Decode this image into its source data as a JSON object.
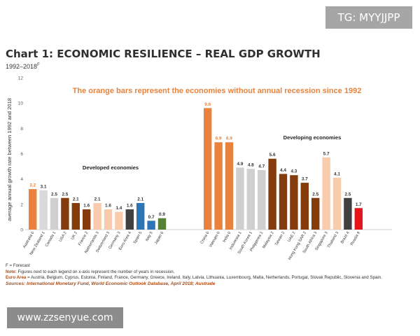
{
  "watermark_tag": "TG: MYYJJPP",
  "watermark_site": "www.zzsenyue.com",
  "title": "Chart 1: ECONOMIC RESILIENCE – REAL GDP GROWTH",
  "subtitle": "1992–2018",
  "subtitle_sup": "F",
  "notes": {
    "forecast": "F = Forecast",
    "note_label": "Note:",
    "note_text": " Figures next to each legend on x-axis represent the number of years in recession.",
    "euro_label": "Euro Area",
    "euro_text": " = Austria, Belgium, Cyprus, Estonia, Finland, France, Germany, Greece, Ireland, Italy, Latvia, Lithuania, Luxembourg, Malta, Netherlands, Portugal, Slovak Republic, Slovenia and Spain.",
    "sources": "Sources: International Monetary Fund, World Economic Outlook Database, April 2018; Austrade"
  },
  "chart_data": {
    "type": "bar",
    "ylabel": "average annual growth rate between 1992 and 2018",
    "ylim": [
      0,
      12
    ],
    "yticks": [
      0,
      2,
      4,
      6,
      8,
      10,
      12
    ],
    "grid": false,
    "headline": "The orange bars represent the economies without annual recession since 1992",
    "group_labels": [
      "Developed economies",
      "Developing economies"
    ],
    "groups": [
      {
        "name": "Developed economies",
        "categories": [
          "Australia 0",
          "New Zealand 1",
          "Canada 1",
          "USA 2",
          "UK 2",
          "France 2",
          "Netherlands 3",
          "Switzerland 3",
          "Germany 3",
          "Euro Area 4",
          "Spain 5",
          "Italy 5",
          "Japan 6"
        ],
        "values": [
          3.2,
          3.1,
          2.5,
          2.5,
          2.1,
          1.6,
          2.1,
          1.6,
          1.4,
          1.6,
          2.1,
          0.7,
          0.9
        ],
        "colors": [
          "#e9823c",
          "#d9d9d9",
          "#d0cece",
          "#843c0c",
          "#843c0c",
          "#843c0c",
          "#f8cbad",
          "#f8cbad",
          "#f8cbad",
          "#404040",
          "#2e75b6",
          "#2e75b6",
          "#548235"
        ]
      },
      {
        "name": "Developing economies",
        "categories": [
          "China 0",
          "Vietnam 0",
          "India 0",
          "Indonesia 1",
          "South Korea 1",
          "Philippines 1",
          "Malaysia 2",
          "Taiwan 2",
          "UAE 2",
          "Hong Kong SAR 2",
          "South Africa 3",
          "Singapore 3",
          "Thailand 3",
          "Brazil 4",
          "Russia 8"
        ],
        "values": [
          9.6,
          6.9,
          6.9,
          4.9,
          4.8,
          4.7,
          5.6,
          4.4,
          4.3,
          3.7,
          2.5,
          5.7,
          4.1,
          2.5,
          1.7
        ],
        "colors": [
          "#e9823c",
          "#e9823c",
          "#e9823c",
          "#d0cece",
          "#d0cece",
          "#d0cece",
          "#843c0c",
          "#843c0c",
          "#843c0c",
          "#843c0c",
          "#843c0c",
          "#f8cbad",
          "#f8cbad",
          "#404040",
          "#e8141b"
        ]
      }
    ]
  }
}
